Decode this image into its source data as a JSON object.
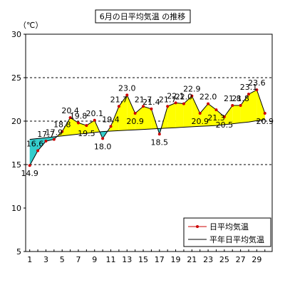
{
  "chart_data": {
    "type": "line",
    "title": "6月の日平均気温 の推移",
    "unit_label": "（℃）",
    "x": [
      1,
      2,
      3,
      4,
      5,
      6,
      7,
      8,
      9,
      10,
      11,
      12,
      13,
      14,
      15,
      16,
      17,
      18,
      19,
      20,
      21,
      22,
      23,
      24,
      25,
      26,
      27,
      28,
      29,
      30
    ],
    "xticks": [
      "1",
      "3",
      "5",
      "7",
      "9",
      "11",
      "13",
      "15",
      "17",
      "19",
      "21",
      "23",
      "25",
      "27",
      "29"
    ],
    "ylim": [
      5,
      30
    ],
    "yticks": [
      "5",
      "10",
      "15",
      "20",
      "25",
      "30"
    ],
    "grid": "dashed horizontal at 15, 20, 25",
    "legend_position": "bottom-right",
    "series": [
      {
        "name": "日平均気温",
        "color": "#cc0000",
        "values": [
          14.9,
          16.6,
          17.7,
          17.9,
          18.8,
          20.4,
          19.8,
          19.5,
          20.1,
          18.0,
          19.4,
          21.7,
          23.0,
          20.9,
          21.7,
          21.4,
          18.5,
          21.7,
          22.1,
          22.0,
          22.9,
          20.9,
          22.0,
          21.3,
          20.5,
          21.8,
          21.8,
          23.1,
          23.6,
          20.9
        ],
        "labels": [
          "14.9",
          "16.6",
          "17.7",
          "17.9",
          "18.8",
          "20.4",
          "19.8",
          "19.5",
          "20.1",
          "18.0",
          "19.4",
          "21.7",
          "23.0",
          "20.9",
          "21.7",
          "21.4",
          "18.5",
          "21.7",
          "22.1",
          "22.0",
          "22.9",
          "20.9",
          "22.0",
          "21.3",
          "20.5",
          "21.8",
          "21.8",
          "23.1",
          "23.6",
          "20.9"
        ]
      },
      {
        "name": "平年日平均気温",
        "color": "#000000",
        "values": [
          17.9,
          18.0,
          18.1,
          18.2,
          18.3,
          18.4,
          18.5,
          18.6,
          18.7,
          18.8,
          18.85,
          18.9,
          18.95,
          19.0,
          19.05,
          19.1,
          19.15,
          19.2,
          19.25,
          19.3,
          19.35,
          19.4,
          19.45,
          19.5,
          19.6,
          19.7,
          19.8,
          19.9,
          20.05,
          20.2
        ]
      }
    ],
    "fill_above_color": "#ffff00",
    "fill_below_color": "#33cccc"
  }
}
